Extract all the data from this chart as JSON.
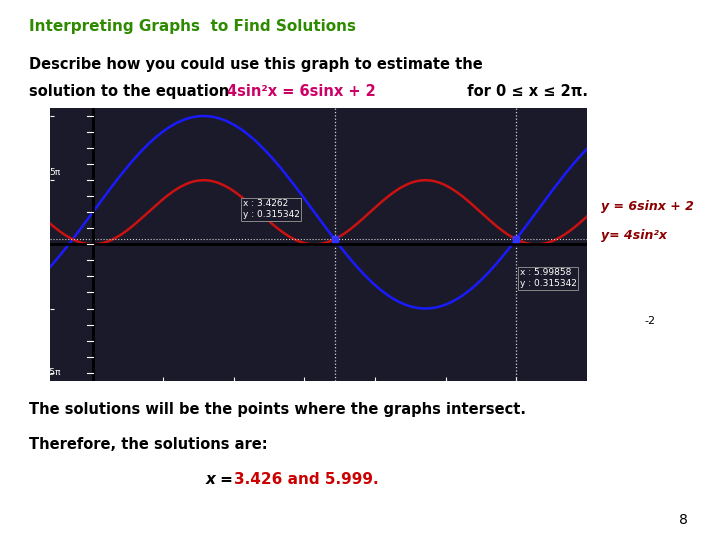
{
  "title": "Interpreting Graphs  to Find Solutions",
  "title_color": "#2e8b00",
  "desc_line1": "Describe how you could use this graph to estimate the",
  "desc_line2_plain": "solution to the equation ",
  "desc_line2_eq": "4sin²x = 6sinx + 2",
  "desc_line2_eq_color": "#cc0066",
  "desc_line2_rest": "  for 0 ≤ x ≤ 2π.",
  "graph_label1": "y = 6sinx + 2",
  "graph_label2": "y= 4sin²x",
  "graph_label_color": "#8b0000",
  "blue_color": "#1a1aff",
  "red_color": "#cc1111",
  "graph_bg": "#1a1a2a",
  "x1_annot": "x : 3.4262\ny : 0.315342",
  "x2_annot": "x : 5.99858\ny : 0.315342",
  "x_intersect1": 3.4262,
  "x_intersect2": 5.99858,
  "y_intersect": 0.315342,
  "sol_line1": "The solutions will be the points where the graphs intersect.",
  "sol_line2": "Therefore, the solutions are:",
  "sol_line3_italic": "x = ",
  "sol_line3_colored": "3.426 and 5.999.",
  "sol_color": "#cc0000",
  "page_num": "8",
  "bg_color": "#ffffff",
  "xmin": -0.6,
  "xmax": 7.0,
  "ymin": -8.5,
  "ymax": 8.5
}
